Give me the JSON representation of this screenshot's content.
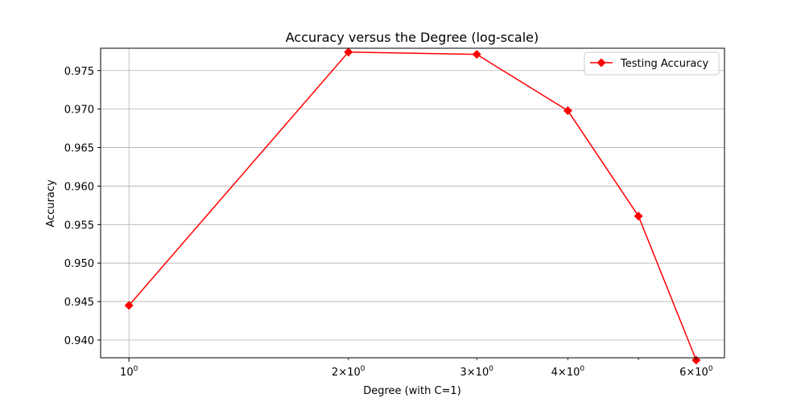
{
  "chart_data": {
    "type": "line",
    "title": "Accuracy versus the Degree (log-scale)",
    "xlabel": "Degree (with C=1)",
    "ylabel": "Accuracy",
    "xscale": "log",
    "x": [
      1,
      2,
      3,
      4,
      5,
      6
    ],
    "xticks": [
      {
        "value": 1,
        "mantissa": "",
        "exponent": "0"
      },
      {
        "value": 2,
        "mantissa": "2",
        "exponent": "0"
      },
      {
        "value": 3,
        "mantissa": "3",
        "exponent": "0"
      },
      {
        "value": 4,
        "mantissa": "4",
        "exponent": "0"
      },
      {
        "value": 6,
        "mantissa": "6",
        "exponent": "0"
      }
    ],
    "yticks": [
      "0.940",
      "0.945",
      "0.950",
      "0.955",
      "0.960",
      "0.965",
      "0.970",
      "0.975"
    ],
    "ylim": [
      0.9377,
      0.9779
    ],
    "xlim": [
      0.9144,
      6.5616
    ],
    "series": [
      {
        "name": "Testing Accuracy",
        "color": "#ff0000",
        "marker": "diamond",
        "values": [
          0.9445,
          0.9774,
          0.9771,
          0.9698,
          0.9561,
          0.9374
        ]
      }
    ],
    "grid": true,
    "legend_position": "top-right"
  }
}
